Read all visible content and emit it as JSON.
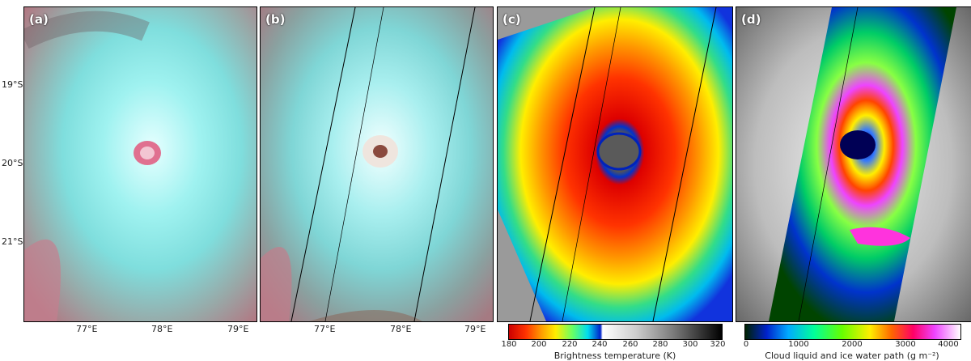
{
  "panels": [
    {
      "label": "(a)"
    },
    {
      "label": "(b)"
    },
    {
      "label": "(c)"
    },
    {
      "label": "(d)"
    }
  ],
  "axes": {
    "lat_ticks": [
      "19°S",
      "20°S",
      "21°S"
    ],
    "lon_ticks": [
      "77°E",
      "78°E",
      "79°E"
    ]
  },
  "colorbars": [
    {
      "title": "Brightness temperature (K)",
      "ticks": [
        "180",
        "200",
        "220",
        "240",
        "260",
        "280",
        "300",
        "320"
      ]
    },
    {
      "title": "Cloud liquid and ice water path (g m⁻²)",
      "ticks": [
        "0",
        "1000",
        "2000",
        "3000",
        "4000"
      ]
    }
  ]
}
